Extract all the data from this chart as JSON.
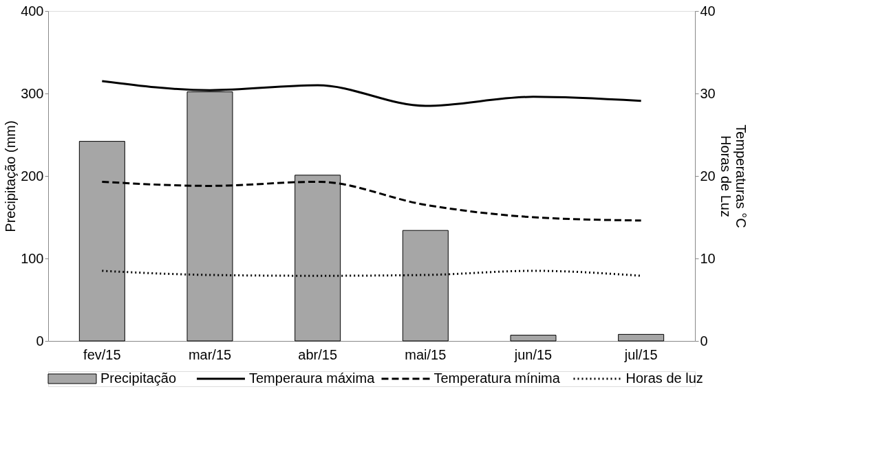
{
  "chart_data": {
    "type": "bar",
    "categories": [
      "fev/15",
      "mar/15",
      "abr/15",
      "mai/15",
      "jun/15",
      "jul/15"
    ],
    "ylabel": "Precipitação (mm)",
    "y2label": "Temperaturas °C\nHoras de Luz",
    "ylim": [
      0,
      400
    ],
    "yticks": [
      0,
      100,
      200,
      300,
      400
    ],
    "y2lim": [
      0,
      40
    ],
    "y2ticks": [
      0,
      10,
      20,
      30,
      40
    ],
    "grid": false,
    "legend": "bottom",
    "marker": "none",
    "series": [
      {
        "name": "Precipitação",
        "color": "#a6a6a6",
        "values": [
          242,
          302,
          201,
          134,
          7,
          8
        ]
      },
      {
        "name": "Temperaura máxima",
        "type": "line",
        "axis": "y2",
        "line_style": "solid",
        "color": "#000000",
        "values": [
          31.5,
          30.4,
          31.0,
          28.5,
          29.6,
          29.1
        ]
      },
      {
        "name": "Temperatura mínima",
        "type": "line",
        "axis": "y2",
        "line_style": "dashed",
        "color": "#000000",
        "values": [
          19.3,
          18.8,
          19.3,
          16.5,
          15.0,
          14.6
        ]
      },
      {
        "name": "Horas de luz",
        "type": "line",
        "axis": "y2",
        "line_style": "dotted",
        "color": "#000000",
        "values": [
          8.5,
          8.0,
          7.9,
          8.0,
          8.5,
          7.9
        ]
      }
    ]
  }
}
